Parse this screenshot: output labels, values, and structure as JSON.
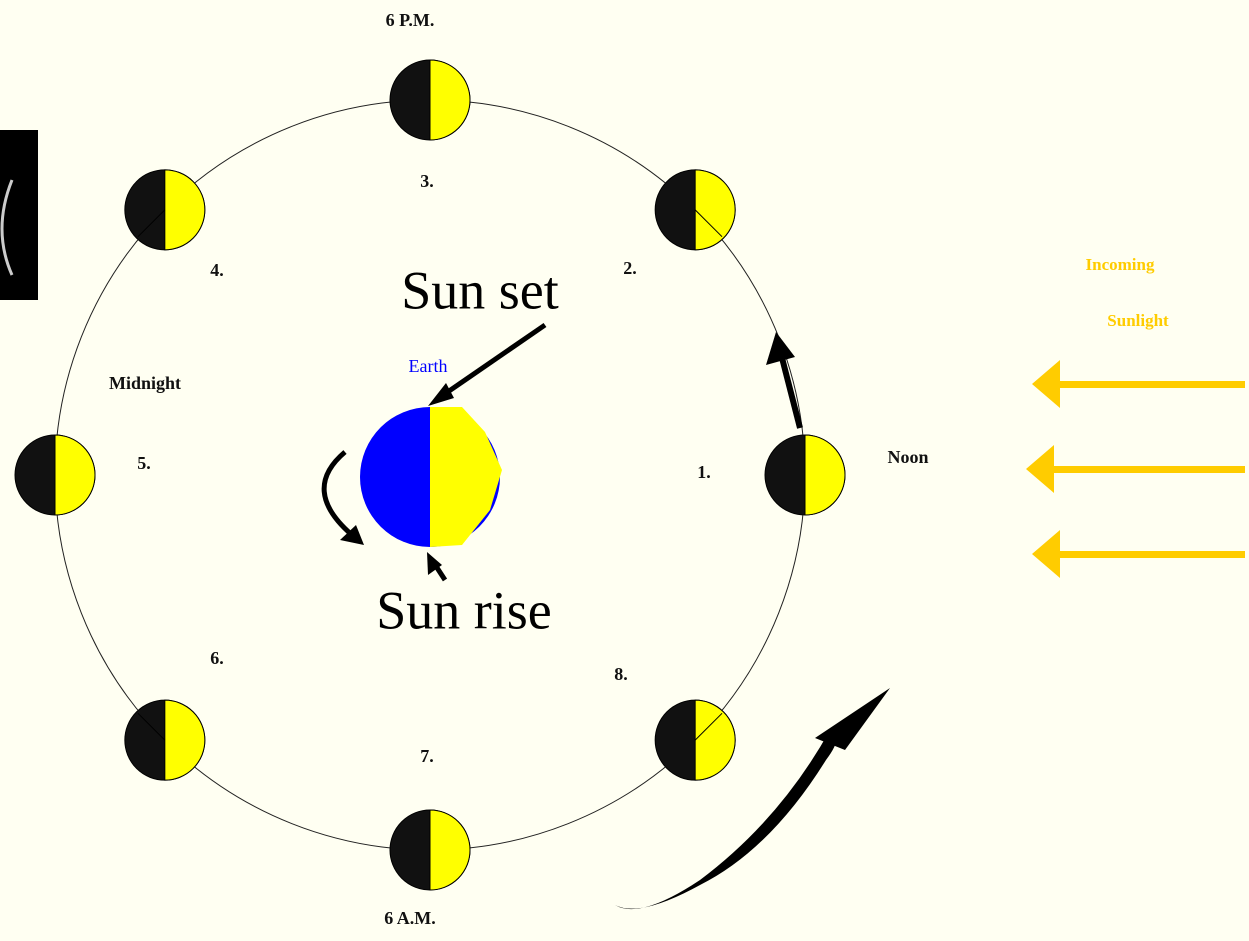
{
  "times": {
    "six_pm": "6 P.M.",
    "six_am": "6 A.M.",
    "midnight": "Midnight",
    "noon": "Noon"
  },
  "positions": [
    "1.",
    "2.",
    "3.",
    "4.",
    "5.",
    "6.",
    "7.",
    "8."
  ],
  "earth": {
    "label": "Earth",
    "sunset": "Sun set",
    "sunrise": "Sun rise"
  },
  "sunlight": {
    "line1": "Incoming",
    "line2": "Sunlight"
  }
}
